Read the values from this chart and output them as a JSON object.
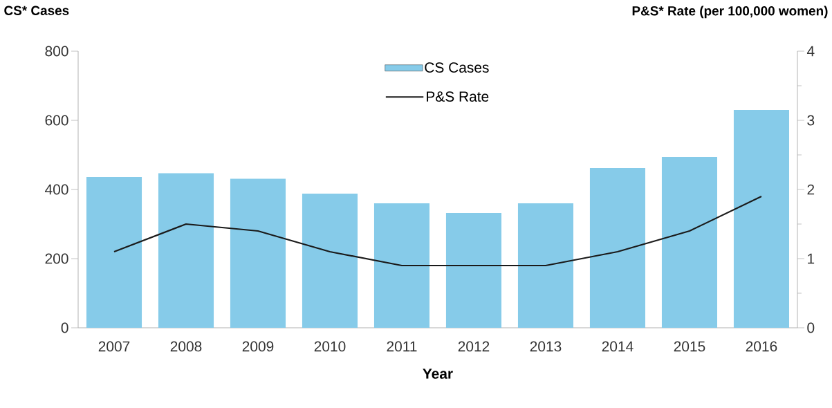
{
  "chart_data": {
    "type": "bar",
    "xlabel": "Year",
    "ylabel": "CS* Cases",
    "y2label": "P&S* Rate (per 100,000 women)",
    "categories": [
      "2007",
      "2008",
      "2009",
      "2010",
      "2011",
      "2012",
      "2013",
      "2014",
      "2015",
      "2016"
    ],
    "series": [
      {
        "name": "CS Cases",
        "color": "#86cbe9",
        "values": [
          436,
          447,
          431,
          388,
          360,
          332,
          360,
          462,
          494,
          630
        ]
      },
      {
        "name": "P&S Rate",
        "type": "line",
        "axis": "y2",
        "color": "#1a1a1a",
        "values": [
          1.1,
          1.5,
          1.4,
          1.1,
          0.9,
          0.9,
          0.9,
          1.1,
          1.4,
          1.9
        ]
      }
    ],
    "ylim": [
      0,
      800
    ],
    "yticks": [
      0,
      200,
      400,
      600,
      800
    ],
    "y2lim": [
      0,
      4
    ],
    "y2ticks": [
      0,
      1,
      2,
      3,
      4
    ],
    "legend": "top",
    "grid": false
  }
}
